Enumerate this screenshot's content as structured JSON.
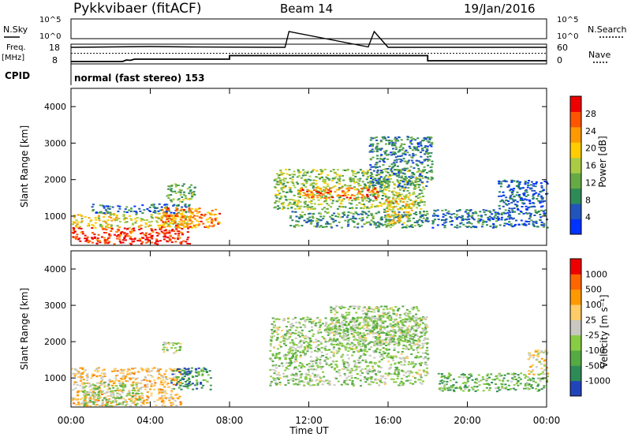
{
  "header": {
    "title": "Pykkvibaer (fitACF)",
    "beam": "Beam 14",
    "date": "19/Jan/2016"
  },
  "chart_data": [
    {
      "type": "line",
      "panel": "noise",
      "left_label": "N.Sky",
      "right_label": "N.Search",
      "yticks_left": [
        "10^5",
        "10^0"
      ],
      "yticks_right": [
        "10^5",
        "10^0"
      ],
      "series": [
        {
          "name": "N.Sky",
          "x": [
            0,
            2,
            4,
            6,
            10.8,
            11,
            15,
            15.3,
            16,
            20,
            24
          ],
          "y": [
            0.2,
            0.22,
            0.24,
            0.22,
            0.2,
            1.0,
            0.22,
            1.0,
            0.2,
            0.2,
            0.2
          ]
        }
      ]
    },
    {
      "type": "line",
      "panel": "frequency",
      "left_label_line1": "Freq.",
      "left_label_line2": "[MHz]",
      "right_label": "Nave",
      "yticks_left": [
        "18",
        "8"
      ],
      "yticks_right": [
        "60",
        "0"
      ],
      "series": [
        {
          "name": "Freq.",
          "x": [
            0,
            2.6,
            2.8,
            3.0,
            3.2,
            8.0,
            8.0,
            18.0,
            18.0,
            24
          ],
          "y": [
            9.2,
            9.2,
            10.0,
            9.8,
            10.4,
            10.4,
            12.2,
            12.2,
            9.6,
            9.6
          ]
        },
        {
          "name": "Nave",
          "x": [
            0,
            24
          ],
          "y": [
            32,
            32
          ]
        }
      ],
      "cpid_label": "CPID",
      "cpid_text": "normal (fast stereo) 153"
    },
    {
      "type": "heatmap",
      "panel": "power",
      "ylabel": "Slant Range [km]",
      "xlabel": "Time UT",
      "xlim": [
        0,
        24
      ],
      "ylim": [
        200,
        4500
      ],
      "yticks": [
        1000,
        2000,
        3000,
        4000
      ],
      "xticks": [
        "00:00",
        "04:00",
        "08:00",
        "12:00",
        "16:00",
        "20:00",
        "00:00"
      ],
      "colorbar_label": "Power [dB]",
      "colorbar_ticks": [
        "28",
        "24",
        "20",
        "16",
        "12",
        "8",
        "4"
      ],
      "colorbar_colors": [
        "#0033ff",
        "#2255bb",
        "#2e8b57",
        "#66aa44",
        "#aacc44",
        "#ffcc00",
        "#ff9900",
        "#ff5500",
        "#ee0000"
      ],
      "regions": [
        {
          "t0": 0.0,
          "t1": 6.0,
          "r0": 250,
          "r1": 700,
          "level": 0.92
        },
        {
          "t0": 0.0,
          "t1": 6.0,
          "r0": 700,
          "r1": 1100,
          "level": 0.58
        },
        {
          "t0": 1.0,
          "t1": 6.0,
          "r0": 1100,
          "r1": 1350,
          "level": 0.22
        },
        {
          "t0": 4.5,
          "t1": 7.5,
          "r0": 700,
          "r1": 1250,
          "level": 0.75
        },
        {
          "t0": 4.8,
          "t1": 6.2,
          "r0": 1400,
          "r1": 1900,
          "level": 0.4
        },
        {
          "t0": 10.2,
          "t1": 17.8,
          "r0": 1200,
          "r1": 2300,
          "level": 0.45
        },
        {
          "t0": 11.5,
          "t1": 15.5,
          "r0": 1500,
          "r1": 1800,
          "level": 0.82
        },
        {
          "t0": 11.0,
          "t1": 18.0,
          "r0": 700,
          "r1": 1150,
          "level": 0.3
        },
        {
          "t0": 15.0,
          "t1": 18.2,
          "r0": 1800,
          "r1": 3200,
          "level": 0.25
        },
        {
          "t0": 15.8,
          "t1": 17.2,
          "r0": 800,
          "r1": 1600,
          "level": 0.62
        },
        {
          "t0": 18.2,
          "t1": 24.0,
          "r0": 700,
          "r1": 1200,
          "level": 0.2
        },
        {
          "t0": 21.5,
          "t1": 24.0,
          "r0": 1200,
          "r1": 2000,
          "level": 0.15
        }
      ]
    },
    {
      "type": "heatmap",
      "panel": "velocity",
      "ylabel": "Slant Range [km]",
      "xlabel": "Time UT",
      "xlim": [
        0,
        24
      ],
      "ylim": [
        200,
        4500
      ],
      "yticks": [
        1000,
        2000,
        3000,
        4000
      ],
      "xticks": [
        "00:00",
        "04:00",
        "08:00",
        "12:00",
        "16:00",
        "20:00",
        "00:00"
      ],
      "colorbar_label": "Velocity [m s⁻¹]",
      "colorbar_ticks": [
        "1000",
        "500",
        "100",
        "25",
        "-25",
        "-100",
        "-500",
        "-1000"
      ],
      "colorbar_colors": [
        "#2244bb",
        "#2e8b57",
        "#55aa44",
        "#88cc44",
        "#c8c8c0",
        "#ffcc66",
        "#ff9900",
        "#ff6600",
        "#ee0000"
      ],
      "regions": [
        {
          "t0": 0.0,
          "t1": 5.5,
          "r0": 250,
          "r1": 1300,
          "level": 0.62
        },
        {
          "t0": 0.5,
          "t1": 3.5,
          "r0": 250,
          "r1": 900,
          "level": 0.4
        },
        {
          "t0": 5.0,
          "t1": 7.0,
          "r0": 700,
          "r1": 1300,
          "level": 0.2
        },
        {
          "t0": 4.5,
          "t1": 5.5,
          "r0": 1700,
          "r1": 2000,
          "level": 0.4
        },
        {
          "t0": 10.0,
          "t1": 18.0,
          "r0": 800,
          "r1": 2700,
          "level": 0.4
        },
        {
          "t0": 13.0,
          "t1": 17.5,
          "r0": 1900,
          "r1": 3000,
          "level": 0.4
        },
        {
          "t0": 18.5,
          "t1": 24.0,
          "r0": 650,
          "r1": 1150,
          "level": 0.3
        },
        {
          "t0": 23.0,
          "t1": 24.0,
          "r0": 1100,
          "r1": 1800,
          "level": 0.55
        }
      ]
    }
  ]
}
